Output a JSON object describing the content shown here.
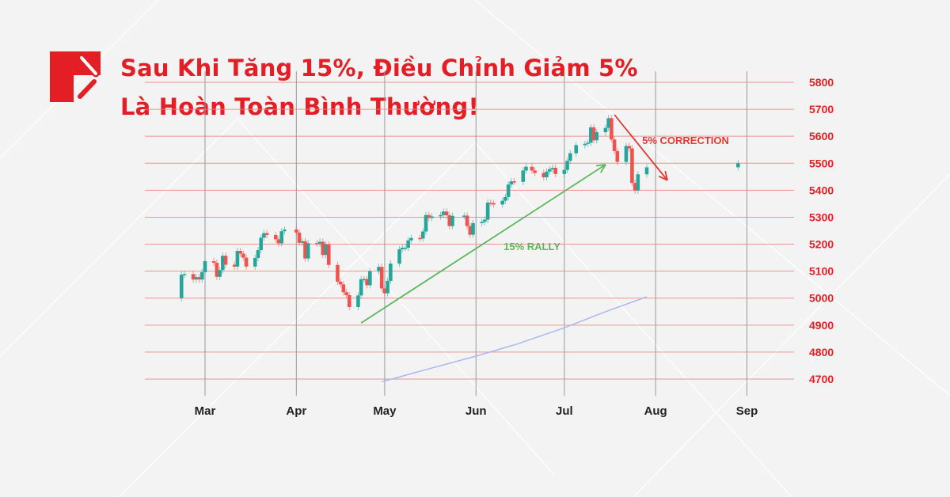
{
  "header": {
    "title_line1": "Sau Khi Tăng 15%, Điều Chỉnh Giảm 5%",
    "title_line2": "Là Hoàn Toàn Bình Thường!",
    "logo_icon": "brand-logo-icon"
  },
  "colors": {
    "accent": "#e31e24",
    "up": "#26a69a",
    "down": "#ef5350",
    "grid": "#f08080",
    "ma": "#a9b8f0",
    "rally": "#5cb85c",
    "correction": "#e53935"
  },
  "chart_data": {
    "type": "candlestick",
    "title": "",
    "ylim": [
      4700,
      5800
    ],
    "yticks": [
      4700,
      4800,
      4900,
      5000,
      5100,
      5200,
      5300,
      5400,
      5500,
      5600,
      5700,
      5800
    ],
    "ytick_labels": [
      "4700",
      "4800",
      "4900",
      "5000",
      "5100",
      "5200",
      "5300",
      "5400",
      "5500",
      "5600",
      "5700",
      "5800"
    ],
    "xticks": [
      "2024-03-01",
      "2024-04-01",
      "2024-05-01",
      "2024-06-01",
      "2024-07-01",
      "2024-08-01",
      "2024-09-01"
    ],
    "xtick_labels": [
      "Mar",
      "Apr",
      "May",
      "Jun",
      "Jul",
      "Aug",
      "Sep"
    ],
    "grid": true,
    "first_open": 5000,
    "closes": [
      [
        "2024-02-22",
        5087
      ],
      [
        "2024-02-23",
        5089
      ],
      [
        "2024-02-26",
        5069
      ],
      [
        "2024-02-27",
        5078
      ],
      [
        "2024-02-28",
        5069
      ],
      [
        "2024-02-29",
        5096
      ],
      [
        "2024-03-01",
        5137
      ],
      [
        "2024-03-04",
        5131
      ],
      [
        "2024-03-05",
        5079
      ],
      [
        "2024-03-06",
        5104
      ],
      [
        "2024-03-07",
        5157
      ],
      [
        "2024-03-08",
        5124
      ],
      [
        "2024-03-11",
        5117
      ],
      [
        "2024-03-12",
        5175
      ],
      [
        "2024-03-13",
        5165
      ],
      [
        "2024-03-14",
        5150
      ],
      [
        "2024-03-15",
        5117
      ],
      [
        "2024-03-18",
        5149
      ],
      [
        "2024-03-19",
        5178
      ],
      [
        "2024-03-20",
        5224
      ],
      [
        "2024-03-21",
        5241
      ],
      [
        "2024-03-22",
        5234
      ],
      [
        "2024-03-25",
        5218
      ],
      [
        "2024-03-26",
        5203
      ],
      [
        "2024-03-27",
        5248
      ],
      [
        "2024-03-28",
        5254
      ],
      [
        "2024-04-01",
        5243
      ],
      [
        "2024-04-02",
        5205
      ],
      [
        "2024-04-03",
        5211
      ],
      [
        "2024-04-04",
        5147
      ],
      [
        "2024-04-05",
        5204
      ],
      [
        "2024-04-08",
        5202
      ],
      [
        "2024-04-09",
        5209
      ],
      [
        "2024-04-10",
        5160
      ],
      [
        "2024-04-11",
        5199
      ],
      [
        "2024-04-12",
        5123
      ],
      [
        "2024-04-15",
        5061
      ],
      [
        "2024-04-16",
        5051
      ],
      [
        "2024-04-17",
        5022
      ],
      [
        "2024-04-18",
        5011
      ],
      [
        "2024-04-19",
        4967
      ],
      [
        "2024-04-22",
        5010
      ],
      [
        "2024-04-23",
        5070
      ],
      [
        "2024-04-24",
        5071
      ],
      [
        "2024-04-25",
        5048
      ],
      [
        "2024-04-26",
        5100
      ],
      [
        "2024-04-29",
        5116
      ],
      [
        "2024-04-30",
        5036
      ],
      [
        "2024-05-01",
        5018
      ],
      [
        "2024-05-02",
        5064
      ],
      [
        "2024-05-03",
        5128
      ],
      [
        "2024-05-06",
        5181
      ],
      [
        "2024-05-07",
        5187
      ],
      [
        "2024-05-08",
        5187
      ],
      [
        "2024-05-09",
        5214
      ],
      [
        "2024-05-10",
        5223
      ],
      [
        "2024-05-13",
        5221
      ],
      [
        "2024-05-14",
        5247
      ],
      [
        "2024-05-15",
        5308
      ],
      [
        "2024-05-16",
        5297
      ],
      [
        "2024-05-17",
        5303
      ],
      [
        "2024-05-20",
        5308
      ],
      [
        "2024-05-21",
        5321
      ],
      [
        "2024-05-22",
        5307
      ],
      [
        "2024-05-23",
        5267
      ],
      [
        "2024-05-24",
        5305
      ],
      [
        "2024-05-28",
        5306
      ],
      [
        "2024-05-29",
        5267
      ],
      [
        "2024-05-30",
        5235
      ],
      [
        "2024-05-31",
        5278
      ],
      [
        "2024-06-03",
        5283
      ],
      [
        "2024-06-04",
        5291
      ],
      [
        "2024-06-05",
        5354
      ],
      [
        "2024-06-06",
        5352
      ],
      [
        "2024-06-07",
        5347
      ],
      [
        "2024-06-10",
        5361
      ],
      [
        "2024-06-11",
        5375
      ],
      [
        "2024-06-12",
        5421
      ],
      [
        "2024-06-13",
        5433
      ],
      [
        "2024-06-14",
        5431
      ],
      [
        "2024-06-17",
        5473
      ],
      [
        "2024-06-18",
        5487
      ],
      [
        "2024-06-20",
        5473
      ],
      [
        "2024-06-21",
        5464
      ],
      [
        "2024-06-24",
        5448
      ],
      [
        "2024-06-25",
        5469
      ],
      [
        "2024-06-26",
        5478
      ],
      [
        "2024-06-27",
        5483
      ],
      [
        "2024-06-28",
        5460
      ],
      [
        "2024-07-01",
        5475
      ],
      [
        "2024-07-02",
        5509
      ],
      [
        "2024-07-03",
        5537
      ],
      [
        "2024-07-05",
        5567
      ],
      [
        "2024-07-08",
        5572
      ],
      [
        "2024-07-09",
        5576
      ],
      [
        "2024-07-10",
        5633
      ],
      [
        "2024-07-11",
        5585
      ],
      [
        "2024-07-12",
        5615
      ],
      [
        "2024-07-15",
        5631
      ],
      [
        "2024-07-16",
        5667
      ],
      [
        "2024-07-17",
        5588
      ],
      [
        "2024-07-18",
        5545
      ],
      [
        "2024-07-19",
        5505
      ],
      [
        "2024-07-22",
        5564
      ],
      [
        "2024-07-23",
        5555
      ],
      [
        "2024-07-24",
        5427
      ],
      [
        "2024-07-25",
        5399
      ],
      [
        "2024-07-26",
        5459
      ],
      [
        "2024-07-29",
        5485
      ]
    ],
    "extra_candle": {
      "date": "2024-08-29",
      "open": 5485,
      "close": 5500
    },
    "moving_average": [
      [
        "2024-04-30",
        4690
      ],
      [
        "2024-05-15",
        4735
      ],
      [
        "2024-06-01",
        4785
      ],
      [
        "2024-06-15",
        4830
      ],
      [
        "2024-07-01",
        4890
      ],
      [
        "2024-07-15",
        4950
      ],
      [
        "2024-07-29",
        5005
      ]
    ],
    "annotations": [
      {
        "text": "15% RALLY",
        "from": [
          "2024-04-23",
          4908
        ],
        "to": [
          "2024-07-15",
          5495
        ],
        "color": "#5cb85c"
      },
      {
        "text": "5% CORRECTION",
        "from": [
          "2024-07-18",
          5680
        ],
        "to": [
          "2024-08-05",
          5437
        ],
        "color": "#e53935"
      }
    ]
  }
}
